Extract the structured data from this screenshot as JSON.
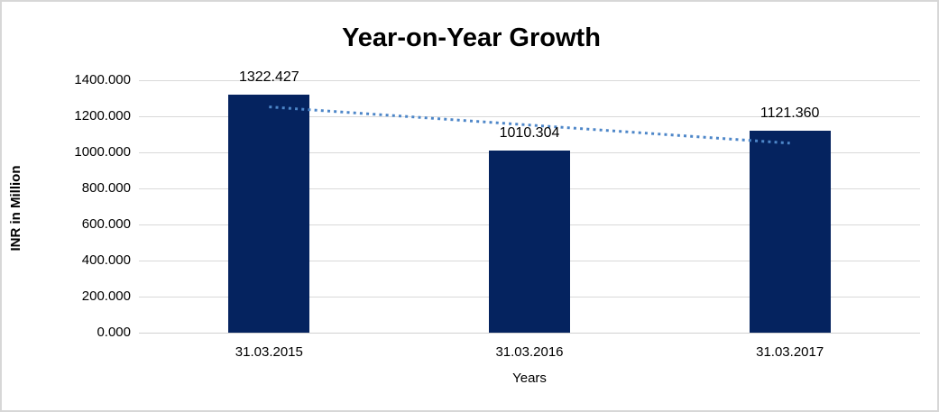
{
  "chart_data": {
    "type": "bar",
    "title": "Year-on-Year Growth",
    "xlabel": "Years",
    "ylabel": "INR in Million",
    "categories": [
      "31.03.2015",
      "31.03.2016",
      "31.03.2017"
    ],
    "values": [
      1322.427,
      1010.304,
      1121.36
    ],
    "data_labels": [
      "1322.427",
      "1010.304",
      "1121.360"
    ],
    "y_ticks": [
      {
        "label": "0.000",
        "value": 0
      },
      {
        "label": "200.000",
        "value": 200
      },
      {
        "label": "400.000",
        "value": 400
      },
      {
        "label": "600.000",
        "value": 600
      },
      {
        "label": "800.000",
        "value": 800
      },
      {
        "label": "1000.000",
        "value": 1000
      },
      {
        "label": "1200.000",
        "value": 1200
      },
      {
        "label": "1400.000",
        "value": 1400
      }
    ],
    "ylim": [
      0,
      1400
    ],
    "grid": true,
    "legend": "none",
    "trendline": {
      "type": "linear",
      "style": "dotted",
      "start": {
        "category_index": 0,
        "value": 1252
      },
      "end": {
        "category_index": 2,
        "value": 1051
      }
    },
    "colors": {
      "bar": "#05235f",
      "trendline": "#4d86c8",
      "gridline": "#d9d9d9",
      "text": "#000000",
      "frame_border": "#d7d7d7",
      "background": "#ffffff"
    }
  }
}
